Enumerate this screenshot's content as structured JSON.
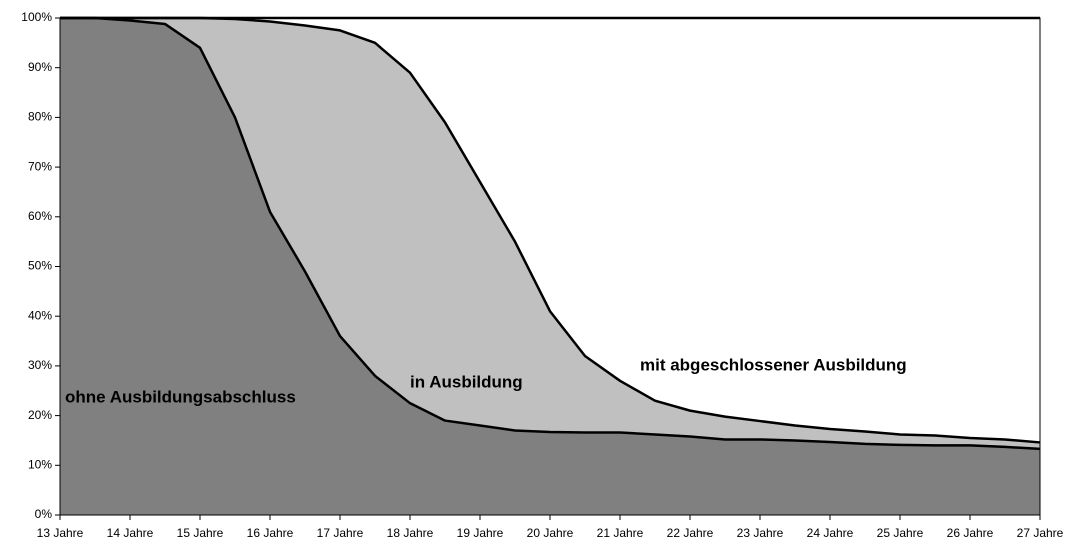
{
  "chart_data": {
    "type": "stacked-area",
    "x": [
      13,
      13.5,
      14,
      14.5,
      15,
      15.5,
      16,
      16.5,
      17,
      17.5,
      18,
      18.5,
      19,
      19.5,
      20,
      20.5,
      21,
      21.5,
      22,
      22.5,
      23,
      23.5,
      24,
      24.5,
      25,
      25.5,
      26,
      26.5,
      27
    ],
    "series": [
      {
        "name": "ohne Ausbildungsabschluss",
        "color": "#808080",
        "values": [
          100,
          100,
          99.5,
          98.8,
          94,
          80,
          61,
          49,
          36,
          28,
          22.5,
          19,
          18,
          17,
          16.7,
          16.6,
          16.6,
          16.2,
          15.8,
          15.2,
          15.2,
          15,
          14.7,
          14.3,
          14.1,
          14,
          14,
          13.7,
          13.3
        ]
      },
      {
        "name": "in Ausbildung",
        "color": "#c0c0c0",
        "values": [
          0,
          0,
          0.5,
          1.2,
          6,
          19.8,
          38.3,
          49.5,
          61.5,
          67,
          66.5,
          60,
          49,
          38,
          24.3,
          15.4,
          10.4,
          6.8,
          5.2,
          4.6,
          3.7,
          3,
          2.6,
          2.5,
          2.1,
          2,
          1.5,
          1.5,
          1.3
        ]
      },
      {
        "name": "mit abgeschlossener Ausbildung",
        "color": "#ffffff",
        "values": [
          0,
          0,
          0,
          0,
          0,
          0.2,
          0.7,
          1.5,
          2.5,
          5,
          11,
          21,
          33,
          45,
          59,
          68,
          73,
          77,
          79,
          80.2,
          81.1,
          82,
          82.7,
          83.2,
          83.8,
          84,
          84.5,
          84.8,
          85.4
        ]
      }
    ],
    "xlim": [
      13,
      27
    ],
    "xticks": [
      {
        "value": 13,
        "label": "13 Jahre"
      },
      {
        "value": 14,
        "label": "14 Jahre"
      },
      {
        "value": 15,
        "label": "15 Jahre"
      },
      {
        "value": 16,
        "label": "16 Jahre"
      },
      {
        "value": 17,
        "label": "17 Jahre"
      },
      {
        "value": 18,
        "label": "18 Jahre"
      },
      {
        "value": 19,
        "label": "19 Jahre"
      },
      {
        "value": 20,
        "label": "20 Jahre"
      },
      {
        "value": 21,
        "label": "21 Jahre"
      },
      {
        "value": 22,
        "label": "22 Jahre"
      },
      {
        "value": 23,
        "label": "23 Jahre"
      },
      {
        "value": 24,
        "label": "24 Jahre"
      },
      {
        "value": 25,
        "label": "25 Jahre"
      },
      {
        "value": 26,
        "label": "26 Jahre"
      },
      {
        "value": 27,
        "label": "27 Jahre"
      }
    ],
    "ylim": [
      0,
      100
    ],
    "yticks": [
      {
        "value": 0,
        "label": "0%"
      },
      {
        "value": 10,
        "label": "10%"
      },
      {
        "value": 20,
        "label": "20%"
      },
      {
        "value": 30,
        "label": "30%"
      },
      {
        "value": 40,
        "label": "40%"
      },
      {
        "value": 50,
        "label": "50%"
      },
      {
        "value": 60,
        "label": "60%"
      },
      {
        "value": 70,
        "label": "70%"
      },
      {
        "value": 80,
        "label": "80%"
      },
      {
        "value": 90,
        "label": "90%"
      },
      {
        "value": 100,
        "label": "100%"
      }
    ],
    "line_color": "#000000"
  }
}
